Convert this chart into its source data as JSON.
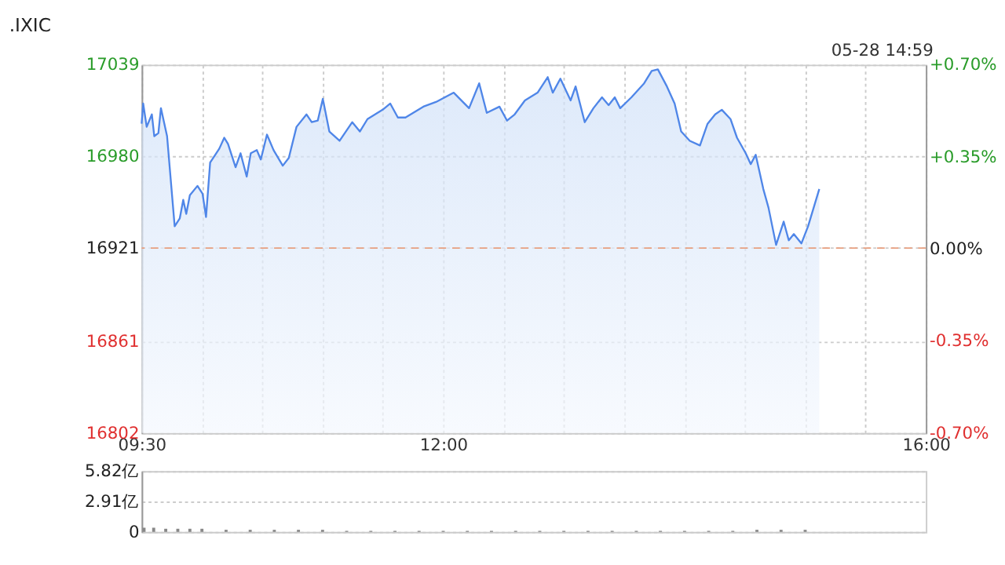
{
  "chart_data": [
    {
      "type": "area",
      "title": ".IXIC",
      "annotations": [
        "05-28 14:59"
      ],
      "xlim": [
        9.5,
        16
      ],
      "xticks": [
        {
          "value": 9.5,
          "label": "09:30"
        },
        {
          "value": 10,
          "label": null
        },
        {
          "value": 10.5,
          "label": null
        },
        {
          "value": 11,
          "label": null
        },
        {
          "value": 11.5,
          "label": null
        },
        {
          "value": 12,
          "label": "12:00"
        },
        {
          "value": 12.5,
          "label": null
        },
        {
          "value": 13,
          "label": null
        },
        {
          "value": 13.5,
          "label": null
        },
        {
          "value": 14,
          "label": null
        },
        {
          "value": 14.5,
          "label": null
        },
        {
          "value": 15,
          "label": null
        },
        {
          "value": 15.5,
          "label": null
        },
        {
          "value": 16,
          "label": "16:00"
        }
      ],
      "ylim": [
        16802,
        17039
      ],
      "yticks": [
        16802,
        16861,
        16921,
        16980,
        17039
      ],
      "y2lim": [
        -0.7,
        0.7
      ],
      "y2ticks": [
        {
          "value": -0.7,
          "label": "-0.70%"
        },
        {
          "value": -0.35,
          "label": "-0.35%"
        },
        {
          "value": 0,
          "label": "0.00%"
        },
        {
          "value": 0.35,
          "label": "+0.35%"
        },
        {
          "value": 0.7,
          "label": "+0.70%"
        }
      ],
      "grid": true,
      "ref_lines": [
        {
          "axis": "y",
          "value": 16921,
          "color": "#e8a080",
          "line_style": "dashed"
        }
      ],
      "series": [
        {
          "color": "#4f86e8",
          "x": [
            9.5,
            9.513,
            9.542,
            9.585,
            9.605,
            9.639,
            9.66,
            9.711,
            9.774,
            9.816,
            9.845,
            9.87,
            9.9,
            9.963,
            10.005,
            10.034,
            10.068,
            10.11,
            10.144,
            10.185,
            10.216,
            10.279,
            10.32,
            10.371,
            10.405,
            10.455,
            10.488,
            10.539,
            10.594,
            10.67,
            10.72,
            10.784,
            10.867,
            10.91,
            10.96,
            11.002,
            11.056,
            11.141,
            11.246,
            11.309,
            11.372,
            11.498,
            11.561,
            11.624,
            11.687,
            11.835,
            11.94,
            12.087,
            12.214,
            12.298,
            12.361,
            12.466,
            12.529,
            12.592,
            12.677,
            12.782,
            12.866,
            12.908,
            12.971,
            13.056,
            13.097,
            13.173,
            13.245,
            13.316,
            13.371,
            13.422,
            13.467,
            13.56,
            13.665,
            13.728,
            13.779,
            13.854,
            13.918,
            13.972,
            14.044,
            14.128,
            14.191,
            14.254,
            14.309,
            14.381,
            14.435,
            14.507,
            14.549,
            14.59,
            14.653,
            14.696,
            14.759,
            14.822,
            14.864,
            14.906,
            14.969,
            15.024,
            15.117
          ],
          "values": [
            17001,
            17014,
            16999,
            17007,
            16993,
            16995,
            17011,
            16993,
            16935,
            16940,
            16952,
            16943,
            16955,
            16961,
            16956,
            16941,
            16976,
            16981,
            16985,
            16992,
            16988,
            16973,
            16982,
            16967,
            16982,
            16984,
            16978,
            16994,
            16984,
            16974,
            16979,
            16999,
            17007,
            17002,
            17003,
            17017,
            16996,
            16990,
            17002,
            16996,
            17004,
            17010,
            17014,
            17005,
            17005,
            17012,
            17015,
            17021,
            17011,
            17027,
            17008,
            17012,
            17003,
            17007,
            17016,
            17021,
            17031,
            17021,
            17030,
            17016,
            17025,
            17002,
            17011,
            17018,
            17013,
            17018,
            17011,
            17018,
            17027,
            17035,
            17036,
            17025,
            17014,
            16996,
            16990,
            16987,
            17001,
            17007,
            17010,
            17004,
            16992,
            16982,
            16975,
            16981,
            16959,
            16947,
            16923,
            16938,
            16926,
            16930,
            16924,
            16935,
            16959
          ]
        }
      ]
    },
    {
      "type": "bar",
      "xlim": [
        9.5,
        16
      ],
      "ylim": [
        0,
        5.82
      ],
      "yticks": [
        0,
        {
          "value": 2.91,
          "label": "2.91亿"
        },
        {
          "value": 5.82,
          "label": "5.82亿"
        }
      ],
      "grid": "y",
      "tick_labels": "y",
      "series": [
        {
          "color": "#888888",
          "x": [
            9.52,
            9.6,
            9.7,
            9.8,
            9.9,
            10.0,
            10.2,
            10.4,
            10.6,
            10.8,
            11.0,
            11.2,
            11.4,
            11.6,
            11.8,
            12.0,
            12.2,
            12.4,
            12.6,
            12.8,
            13.0,
            13.2,
            13.4,
            13.6,
            13.8,
            14.0,
            14.2,
            14.4,
            14.6,
            14.8,
            15.0
          ],
          "values": [
            0.4,
            0.4,
            0.3,
            0.3,
            0.3,
            0.3,
            0.2,
            0.2,
            0.2,
            0.2,
            0.2,
            0.1,
            0.1,
            0.1,
            0.1,
            0.1,
            0.1,
            0.1,
            0.1,
            0.1,
            0.1,
            0.1,
            0.1,
            0.1,
            0.1,
            0.1,
            0.1,
            0.1,
            0.2,
            0.2,
            0.2
          ]
        }
      ]
    }
  ]
}
